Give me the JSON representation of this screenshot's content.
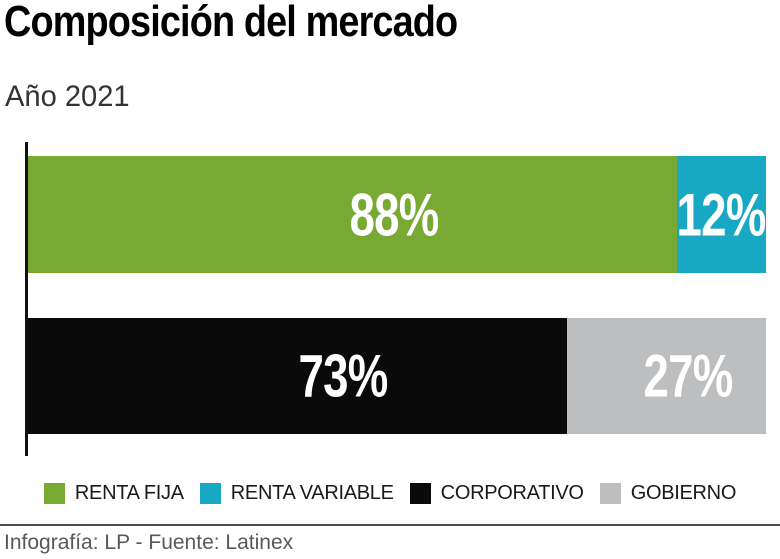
{
  "header": {
    "title": "Composición del mercado",
    "subtitle": "Año 2021"
  },
  "chart_data": {
    "type": "bar",
    "orientation": "horizontal-stacked",
    "title": "Composición del mercado",
    "subtitle": "Año 2021",
    "unit": "%",
    "xlim": [
      0,
      100
    ],
    "grid": false,
    "legend_position": "bottom",
    "bars": [
      {
        "segments": [
          {
            "label": "RENTA FIJA",
            "value": 88,
            "display": "88%",
            "color": "#77A933"
          },
          {
            "label": "RENTA VARIABLE",
            "value": 12,
            "display": "12%",
            "color": "#19A8C4"
          }
        ]
      },
      {
        "segments": [
          {
            "label": "CORPORATIVO",
            "value": 73,
            "display": "73%",
            "color": "#0A0A0A"
          },
          {
            "label": "GOBIERNO",
            "value": 27,
            "display": "27%",
            "color": "#BCBEC0"
          }
        ]
      }
    ],
    "legend": [
      {
        "label": "RENTA FIJA",
        "color": "#77A933"
      },
      {
        "label": "RENTA VARIABLE",
        "color": "#19A8C4"
      },
      {
        "label": "CORPORATIVO",
        "color": "#0A0A0A"
      },
      {
        "label": "GOBIERNO",
        "color": "#BCBEC0"
      }
    ]
  },
  "footer": {
    "credit": "Infografía: LP - Fuente: Latinex"
  }
}
